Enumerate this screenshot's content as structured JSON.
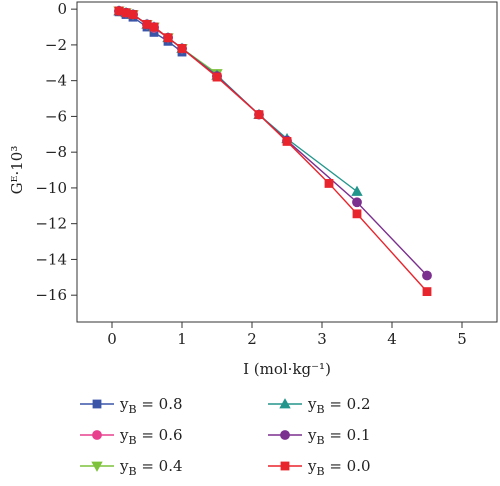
{
  "chart_data": {
    "type": "line",
    "title": "",
    "xlabel": "I (mol·kg⁻¹)",
    "ylabel": "Gᴱ·10³",
    "xlim": [
      -0.5,
      5.5
    ],
    "ylim": [
      -17.5,
      0.4
    ],
    "xticks": [
      0,
      1,
      2,
      3,
      4,
      5
    ],
    "yticks": [
      0,
      -2,
      -4,
      -6,
      -8,
      -10,
      -12,
      -14,
      -16
    ],
    "grid": false,
    "legend_position": "below",
    "legend_label_prefix": "y",
    "legend_label_subscript": "B",
    "series": [
      {
        "name": "0.8",
        "color": "#3a55a8",
        "marker": "square",
        "x": [
          0.1,
          0.2,
          0.3,
          0.5,
          0.6,
          0.8,
          1.0
        ],
        "y": [
          -0.15,
          -0.3,
          -0.45,
          -1.0,
          -1.3,
          -1.8,
          -2.4
        ]
      },
      {
        "name": "0.6",
        "color": "#e8408f",
        "marker": "circle",
        "x": [
          0.1,
          0.2,
          0.3,
          0.5,
          0.6,
          0.8,
          1.0,
          1.5
        ],
        "y": [
          -0.1,
          -0.2,
          -0.3,
          -0.85,
          -1.05,
          -1.6,
          -2.2,
          -3.75
        ]
      },
      {
        "name": "0.4",
        "color": "#7dc23a",
        "marker": "triangle-down",
        "x": [
          0.1,
          0.2,
          0.3,
          0.5,
          0.6,
          0.8,
          1.0,
          1.5
        ],
        "y": [
          -0.1,
          -0.2,
          -0.3,
          -0.85,
          -1.0,
          -1.6,
          -2.2,
          -3.6
        ]
      },
      {
        "name": "0.2",
        "color": "#23968c",
        "marker": "triangle-up",
        "x": [
          0.1,
          0.2,
          0.3,
          0.5,
          0.6,
          0.8,
          1.0,
          1.5,
          2.1,
          2.5,
          3.5
        ],
        "y": [
          -0.1,
          -0.2,
          -0.3,
          -0.85,
          -1.0,
          -1.6,
          -2.2,
          -3.7,
          -5.9,
          -7.25,
          -10.2
        ]
      },
      {
        "name": "0.1",
        "color": "#7b2f8e",
        "marker": "circle",
        "x": [
          0.1,
          0.2,
          0.3,
          0.5,
          0.6,
          0.8,
          1.0,
          1.5,
          2.1,
          2.5,
          3.5,
          4.5
        ],
        "y": [
          -0.1,
          -0.2,
          -0.3,
          -0.85,
          -1.0,
          -1.6,
          -2.2,
          -3.75,
          -5.9,
          -7.35,
          -10.8,
          -14.9
        ]
      },
      {
        "name": "0.0",
        "color": "#e8242c",
        "marker": "square",
        "x": [
          0.1,
          0.2,
          0.3,
          0.5,
          0.6,
          0.8,
          1.0,
          1.5,
          2.1,
          2.5,
          3.1,
          3.5,
          4.5
        ],
        "y": [
          -0.1,
          -0.2,
          -0.3,
          -0.85,
          -1.0,
          -1.6,
          -2.2,
          -3.8,
          -5.9,
          -7.4,
          -9.75,
          -11.45,
          -15.8
        ]
      }
    ]
  }
}
